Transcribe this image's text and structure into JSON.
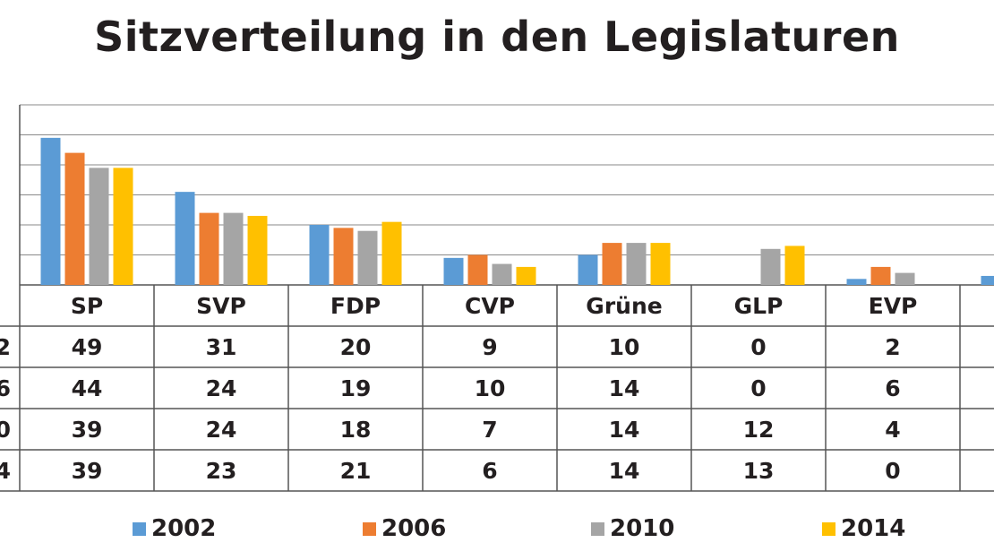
{
  "chart_data": {
    "type": "bar",
    "title": "Sitzverteilung in den Legislaturen",
    "categories": [
      "SP",
      "SVP",
      "FDP",
      "CVP",
      "Grüne",
      "GLP",
      "EVP",
      ""
    ],
    "series": [
      {
        "name": "2002",
        "color": "#5b9bd5",
        "row_label": "2",
        "values": [
          49,
          31,
          20,
          9,
          10,
          0,
          2,
          3
        ]
      },
      {
        "name": "2006",
        "color": "#ed7d31",
        "row_label": "6",
        "values": [
          44,
          24,
          19,
          10,
          14,
          0,
          6,
          null
        ]
      },
      {
        "name": "2010",
        "color": "#a5a5a5",
        "row_label": "0",
        "values": [
          39,
          24,
          18,
          7,
          14,
          12,
          4,
          null
        ]
      },
      {
        "name": "2014",
        "color": "#ffc000",
        "row_label": "4",
        "values": [
          39,
          23,
          21,
          6,
          14,
          13,
          0,
          null
        ]
      }
    ],
    "ylim": [
      0,
      60
    ],
    "grid": true,
    "legend": "bottom",
    "table_values": [
      [
        "49",
        "31",
        "20",
        "9",
        "10",
        "0",
        "2",
        ""
      ],
      [
        "44",
        "24",
        "19",
        "10",
        "14",
        "0",
        "6",
        ""
      ],
      [
        "39",
        "24",
        "18",
        "7",
        "14",
        "12",
        "4",
        ""
      ],
      [
        "39",
        "23",
        "21",
        "6",
        "14",
        "13",
        "0",
        ""
      ]
    ]
  }
}
